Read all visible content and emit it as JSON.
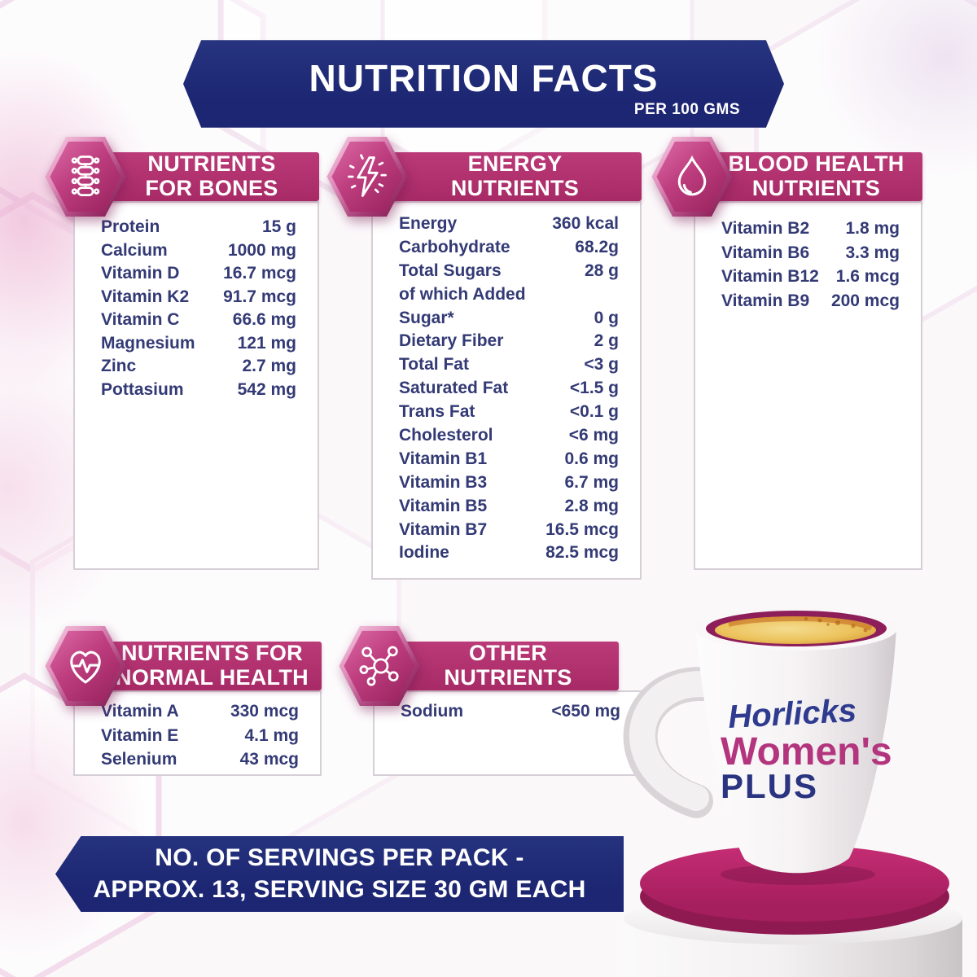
{
  "header": {
    "title": "NUTRITION FACTS",
    "subtitle": "PER 100 GMS"
  },
  "panels": [
    {
      "title_line1": "NUTRIENTS",
      "title_line2": "FOR BONES",
      "icon": "spine-icon",
      "rows": [
        {
          "label": "Protein",
          "value": "15 g"
        },
        {
          "label": "Calcium",
          "value": "1000 mg"
        },
        {
          "label": "Vitamin D",
          "value": "16.7 mcg"
        },
        {
          "label": "Vitamin K2",
          "value": "91.7 mcg"
        },
        {
          "label": "Vitamin C",
          "value": "66.6 mg"
        },
        {
          "label": "Magnesium",
          "value": "121 mg"
        },
        {
          "label": "Zinc",
          "value": "2.7 mg"
        },
        {
          "label": "Pottasium",
          "value": "542 mg"
        }
      ]
    },
    {
      "title_line1": "ENERGY",
      "title_line2": "NUTRIENTS",
      "icon": "lightning-icon",
      "rows": [
        {
          "label": "Energy",
          "value": "360 kcal"
        },
        {
          "label": "Carbohydrate",
          "value": "68.2g"
        },
        {
          "label": "Total Sugars",
          "value": "28 g"
        },
        {
          "label": "of which Added",
          "value": ""
        },
        {
          "label": "Sugar*",
          "value": "0 g"
        },
        {
          "label": "Dietary Fiber",
          "value": "2 g"
        },
        {
          "label": "Total Fat",
          "value": "<3 g"
        },
        {
          "label": "Saturated Fat",
          "value": "<1.5 g"
        },
        {
          "label": "Trans Fat",
          "value": "<0.1 g"
        },
        {
          "label": "Cholesterol",
          "value": "<6 mg"
        },
        {
          "label": "Vitamin B1",
          "value": "0.6 mg"
        },
        {
          "label": "Vitamin B3",
          "value": "6.7 mg"
        },
        {
          "label": "Vitamin B5",
          "value": "2.8 mg"
        },
        {
          "label": "Vitamin B7",
          "value": "16.5 mcg"
        },
        {
          "label": "Iodine",
          "value": "82.5 mcg"
        }
      ]
    },
    {
      "title_line1": "BLOOD HEALTH",
      "title_line2": "NUTRIENTS",
      "icon": "blood-drop-icon",
      "rows": [
        {
          "label": "Vitamin B2",
          "value": "1.8 mg"
        },
        {
          "label": "Vitamin B6",
          "value": "3.3 mg"
        },
        {
          "label": "Vitamin B12",
          "value": "1.6 mcg"
        },
        {
          "label": "Vitamin B9",
          "value": "200 mcg"
        }
      ]
    },
    {
      "title_line1": "NUTRIENTS FOR",
      "title_line2": "NORMAL HEALTH",
      "icon": "heart-pulse-icon",
      "rows": [
        {
          "label": "Vitamin A",
          "value": "330 mcg"
        },
        {
          "label": "Vitamin E",
          "value": "4.1 mg"
        },
        {
          "label": "Selenium",
          "value": "43 mcg"
        }
      ]
    },
    {
      "title_line1": "OTHER",
      "title_line2": "NUTRIENTS",
      "icon": "molecule-icon",
      "rows": [
        {
          "label": "Sodium",
          "value": "<650 mg"
        }
      ]
    }
  ],
  "footer": {
    "line1": "NO. OF SERVINGS PER PACK -",
    "line2": "APPROX. 13, SERVING SIZE 30 GM EACH"
  },
  "mug": {
    "brand_line1": "Horlicks",
    "brand_line2": "Women's",
    "brand_line3": "PLUS"
  },
  "colors": {
    "accent_magenta": "#b02f6e",
    "navy_blue": "#1e2a78",
    "text_navy": "#333a75",
    "drink_yellow": "#ecc35d"
  }
}
